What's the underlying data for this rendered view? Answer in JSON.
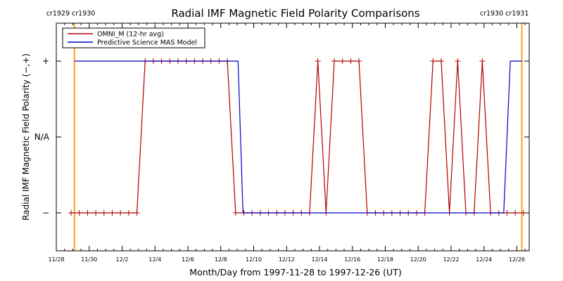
{
  "chart_data": {
    "type": "line",
    "title": "Radial IMF Magnetic Field Polarity Comparisons",
    "xlabel": "Month/Day from 1997-11-28 to 1997-12-26 (UT)",
    "ylabel": "Radial IMF Magnetic Field Polarity (−,+)",
    "x_units": "days since 1997-11-28 00:00 UT",
    "xlim": [
      0,
      28.75
    ],
    "ylim": [
      -1.5,
      1.5
    ],
    "x_tick_values": [
      0,
      2,
      4,
      6,
      8,
      10,
      12,
      14,
      16,
      18,
      20,
      22,
      24,
      26,
      28
    ],
    "x_tick_labels": [
      "11/28",
      "11/30",
      "12/2",
      "12/4",
      "12/6",
      "12/8",
      "12/10",
      "12/12",
      "12/14",
      "12/16",
      "12/18",
      "12/20",
      "12/22",
      "12/24",
      "12/26"
    ],
    "y_tick_values": [
      1,
      0,
      -1
    ],
    "y_tick_labels": [
      "+",
      "N/A",
      "−"
    ],
    "carrington_markers": [
      {
        "x": 1.1,
        "label": "cr1929 cr1930",
        "side": "left"
      },
      {
        "x": 28.3,
        "label": "cr1930 cr1931",
        "side": "right"
      }
    ],
    "legend": {
      "position": "top-left"
    },
    "series": [
      {
        "name": "OMNI_M (12-hr avg)",
        "color": "#b00000",
        "marker": "+",
        "x": [
          0.9,
          1.4,
          1.9,
          2.4,
          2.9,
          3.4,
          3.9,
          4.4,
          4.9,
          5.4,
          5.9,
          6.4,
          6.9,
          7.4,
          7.9,
          8.4,
          8.9,
          9.4,
          9.9,
          10.4,
          10.9,
          11.4,
          11.9,
          12.4,
          12.9,
          13.4,
          13.9,
          14.4,
          14.9,
          15.4,
          15.9,
          16.4,
          16.9,
          17.4,
          17.9,
          18.4,
          18.9,
          19.4,
          19.9,
          20.4,
          20.9,
          21.4,
          21.9,
          22.4,
          22.9,
          23.4,
          23.9,
          24.4,
          24.9,
          25.4,
          25.9,
          26.4,
          26.9,
          27.4,
          27.9,
          28.4
        ],
        "y": [
          -1,
          -1,
          -1,
          -1,
          -1,
          -1,
          -1,
          -1,
          -1,
          1,
          1,
          1,
          1,
          1,
          1,
          1,
          1,
          1,
          1,
          1,
          -1,
          -1,
          -1,
          -1,
          -1,
          -1,
          -1,
          -1,
          -1,
          -1,
          1,
          -1,
          1,
          1,
          1,
          1,
          -1,
          -1,
          -1,
          -1,
          -1,
          -1,
          -1,
          -1,
          1,
          1,
          -1,
          1,
          -1,
          -1,
          1,
          -1,
          -1,
          -1,
          -1,
          -1
        ]
      },
      {
        "name": "Predictive Science MAS Model",
        "color": "#0000c8",
        "x": [
          1.1,
          11.05,
          11.35,
          27.2,
          27.6,
          28.3
        ],
        "y": [
          1,
          1,
          -1,
          -1,
          1,
          1
        ]
      }
    ]
  },
  "colors": {
    "background": "#ffffff",
    "axes": "#000000",
    "marker_line": "#ffa020"
  }
}
